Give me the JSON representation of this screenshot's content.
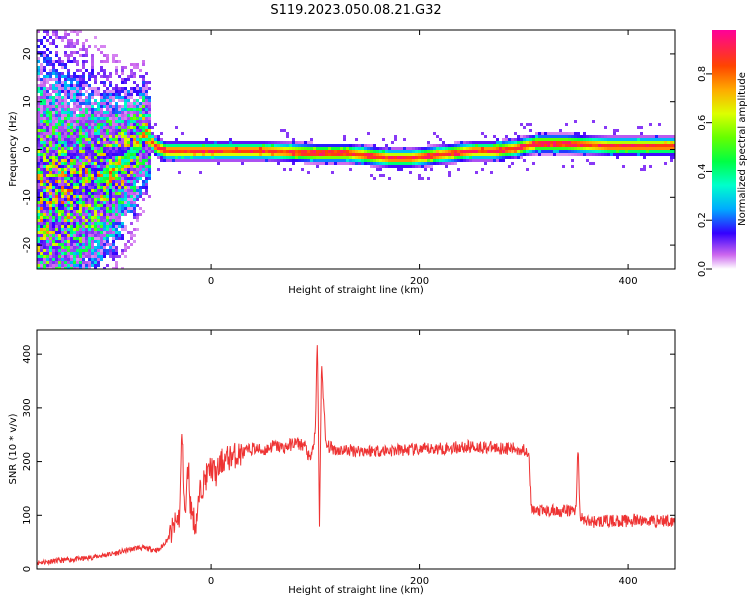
{
  "title": "S119.2023.050.08.21.G32",
  "chart_data": [
    {
      "type": "heatmap",
      "xlabel": "Height of straight line (km)",
      "ylabel": "Frequency (Hz)",
      "xlim": [
        -167,
        445
      ],
      "ylim": [
        -25,
        25
      ],
      "xticks": [
        0,
        200,
        400
      ],
      "yticks": [
        -20,
        -10,
        0,
        10,
        20
      ],
      "colorbar": {
        "label": "Normalized spectral amplitude",
        "range": [
          0,
          0.98
        ],
        "ticks": [
          0.0,
          0.2,
          0.4,
          0.6,
          0.8
        ]
      },
      "ridge": {
        "x": [
          -167,
          -140,
          -110,
          -90,
          -75,
          -65,
          -55,
          -45,
          -30,
          0,
          50,
          100,
          130,
          150,
          170,
          190,
          210,
          230,
          250,
          270,
          290,
          310,
          340,
          380,
          445
        ],
        "y": [
          -10,
          -9,
          -6,
          -3,
          0,
          4,
          1,
          0,
          0,
          0,
          0,
          -0.5,
          -0.5,
          -1,
          -1.5,
          -1.5,
          -1,
          -0.5,
          0,
          0,
          0.5,
          1.5,
          1.5,
          1,
          1
        ]
      }
    },
    {
      "type": "line",
      "xlabel": "Height of straight line (km)",
      "ylabel": "SNR (10 * v/v)",
      "xlim": [
        -167,
        445
      ],
      "ylim": [
        0,
        445
      ],
      "xticks": [
        0,
        200,
        400
      ],
      "yticks": [
        0,
        100,
        200,
        300,
        400
      ],
      "color": "#ee3333",
      "x": [
        -167,
        -120,
        -90,
        -70,
        -50,
        -40,
        -30,
        -28,
        -25,
        -22,
        -20,
        -15,
        -10,
        -5,
        0,
        5,
        10,
        20,
        30,
        40,
        50,
        60,
        70,
        80,
        90,
        95,
        100,
        102,
        104,
        106,
        110,
        120,
        150,
        200,
        250,
        280,
        300,
        305,
        307,
        310,
        340,
        350,
        352,
        354,
        356,
        360,
        400,
        445
      ],
      "y": [
        12,
        20,
        30,
        40,
        35,
        60,
        100,
        260,
        90,
        200,
        120,
        80,
        150,
        170,
        190,
        175,
        200,
        210,
        215,
        225,
        220,
        230,
        225,
        235,
        230,
        200,
        250,
        440,
        75,
        390,
        230,
        222,
        220,
        222,
        228,
        225,
        222,
        220,
        110,
        108,
        108,
        110,
        235,
        90,
        95,
        88,
        90,
        90
      ]
    }
  ]
}
